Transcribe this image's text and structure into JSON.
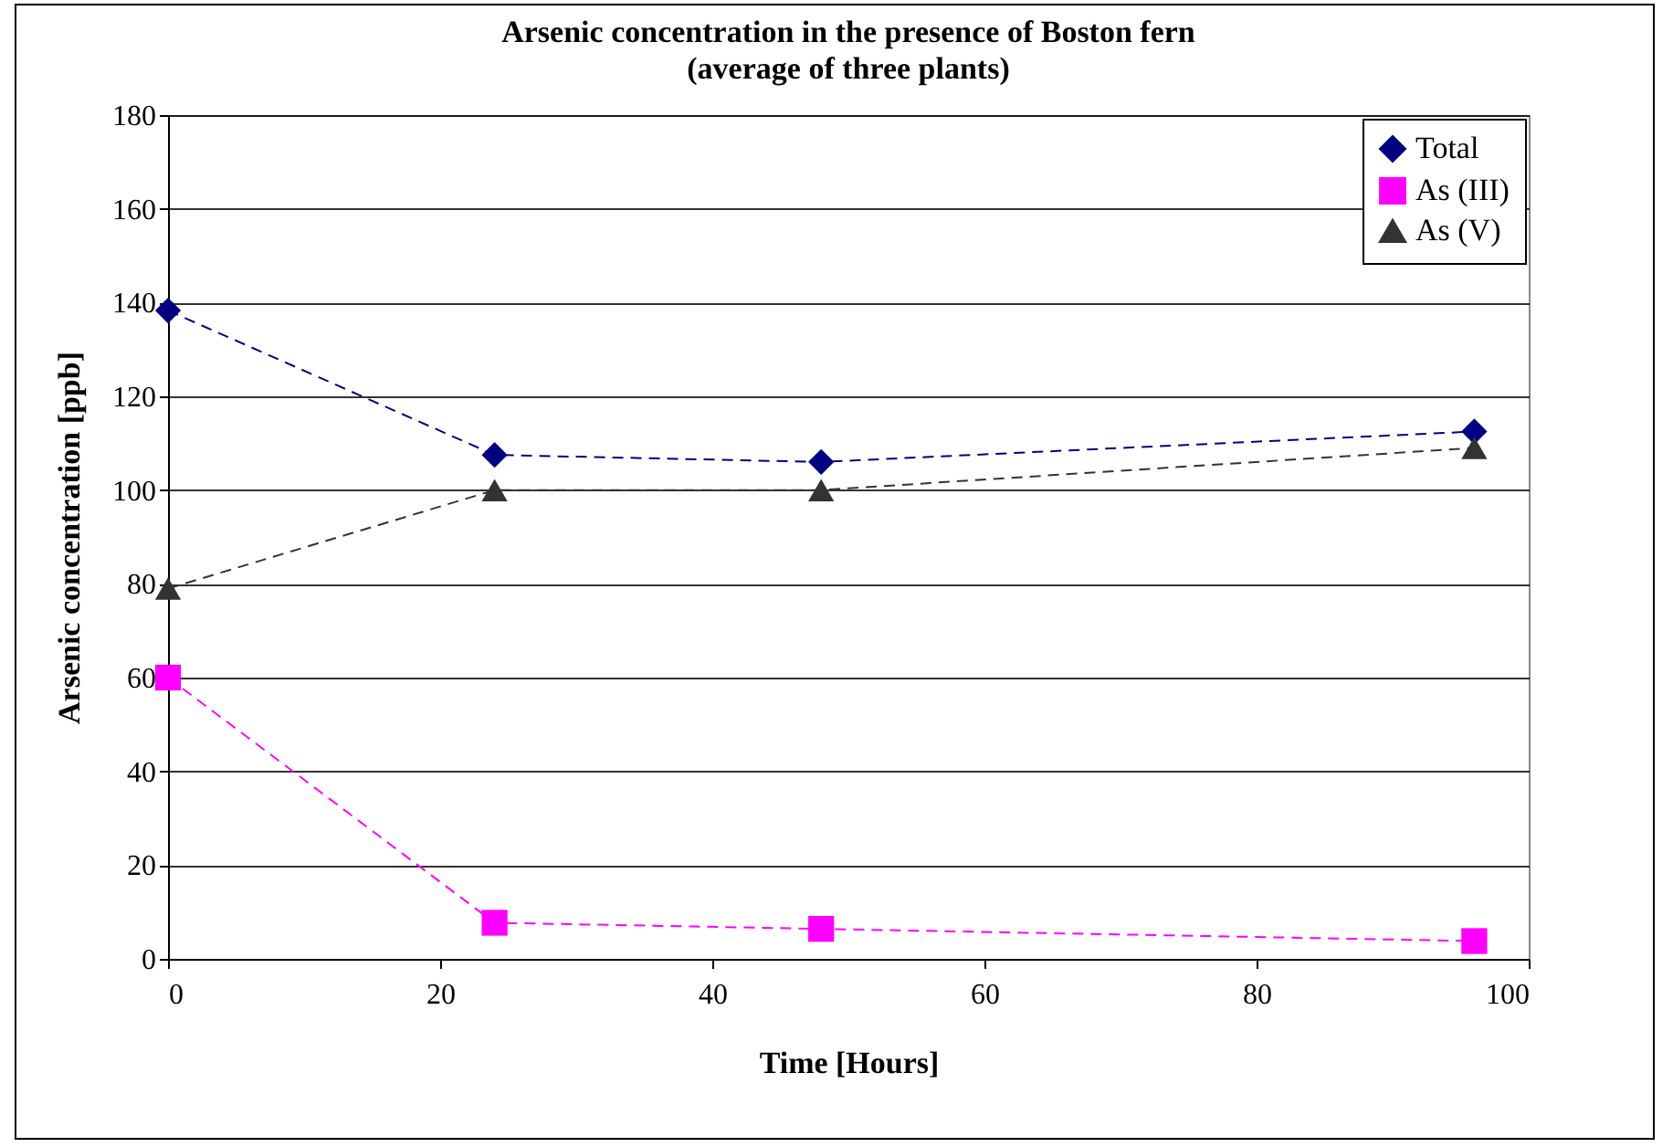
{
  "chart_data": {
    "type": "line",
    "title": "Arsenic concentration in the presence of Boston fern",
    "subtitle": "(average of three plants)",
    "xlabel": "Time [Hours]",
    "ylabel": "Arsenic concentration [ppb]",
    "x": [
      0,
      24,
      48,
      96
    ],
    "series": [
      {
        "name": "Total",
        "color": "#000080",
        "marker": "diamond",
        "values": [
          138.3,
          107.5,
          106,
          112.5
        ]
      },
      {
        "name": "As (III)",
        "color": "#ff00ff",
        "marker": "square",
        "values": [
          60,
          7.7,
          6.4,
          3.8
        ]
      },
      {
        "name": "As (V)",
        "color": "#333333",
        "marker": "triangle",
        "values": [
          79,
          100,
          100,
          109
        ]
      }
    ],
    "xlim": [
      0,
      100
    ],
    "xticks": [
      0,
      20,
      40,
      60,
      80,
      100
    ],
    "ylim": [
      0,
      180
    ],
    "yticks": [
      0,
      20,
      40,
      60,
      80,
      100,
      120,
      140,
      160,
      180
    ],
    "grid": "y",
    "legend": "top right",
    "line_style": "dashed"
  }
}
